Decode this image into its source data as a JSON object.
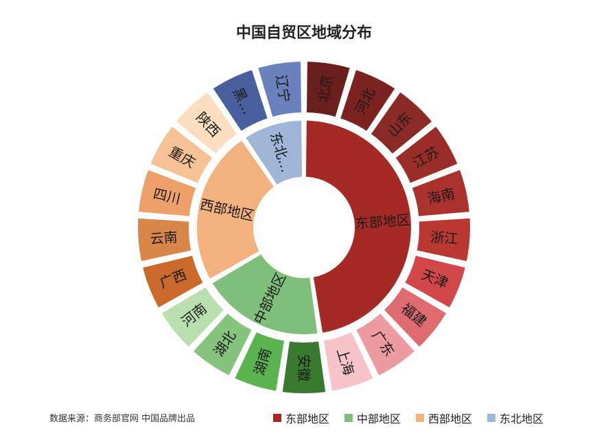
{
  "chart_data": {
    "type": "sunburst",
    "title": "中国自贸区地域分布",
    "source": "数据来源：商务部官网 中国品牌出品",
    "legend_position": "bottom-right",
    "groups": [
      {
        "name": "东部地区",
        "color": "#a52a26",
        "items": [
          {
            "name": "北京",
            "value": 1,
            "color": "#6b1f1c"
          },
          {
            "name": "河北",
            "value": 1,
            "color": "#7a2320"
          },
          {
            "name": "山东",
            "value": 1,
            "color": "#8a2a26"
          },
          {
            "name": "江苏",
            "value": 1,
            "color": "#9a2d28"
          },
          {
            "name": "海南",
            "value": 1,
            "color": "#aa312c"
          },
          {
            "name": "浙江",
            "value": 1,
            "color": "#bb3832"
          },
          {
            "name": "天津",
            "value": 1,
            "color": "#d2474a"
          },
          {
            "name": "福建",
            "value": 1,
            "color": "#dd6b6f"
          },
          {
            "name": "广东",
            "value": 1,
            "color": "#ec9ba0"
          },
          {
            "name": "上海",
            "value": 1,
            "color": "#f6c3c8"
          }
        ]
      },
      {
        "name": "中部地区",
        "color": "#7fbf7b",
        "items": [
          {
            "name": "安徽",
            "value": 1,
            "color": "#3a7a30"
          },
          {
            "name": "湖南",
            "value": 1,
            "color": "#5bb34f"
          },
          {
            "name": "湖北",
            "value": 1,
            "color": "#86c47d"
          },
          {
            "name": "河南",
            "value": 1,
            "color": "#b9deaf"
          }
        ]
      },
      {
        "name": "西部地区",
        "color": "#f3b180",
        "items": [
          {
            "name": "广西",
            "value": 1,
            "color": "#c96a2c"
          },
          {
            "name": "云南",
            "value": 1,
            "color": "#d9864a"
          },
          {
            "name": "四川",
            "value": 1,
            "color": "#eea06a"
          },
          {
            "name": "重庆",
            "value": 1,
            "color": "#f6c195"
          },
          {
            "name": "陕西",
            "value": 1,
            "color": "#fbdec0"
          }
        ]
      },
      {
        "name": "东北地区",
        "color": "#9fb6d9",
        "items": [
          {
            "name": "黑…",
            "value": 1,
            "color": "#4a5f9e"
          },
          {
            "name": "辽宁",
            "value": 1,
            "color": "#6a81bd"
          }
        ]
      }
    ],
    "inner_labels": [
      "东部地区",
      "中部地区",
      "西部地区",
      "东北…"
    ]
  }
}
